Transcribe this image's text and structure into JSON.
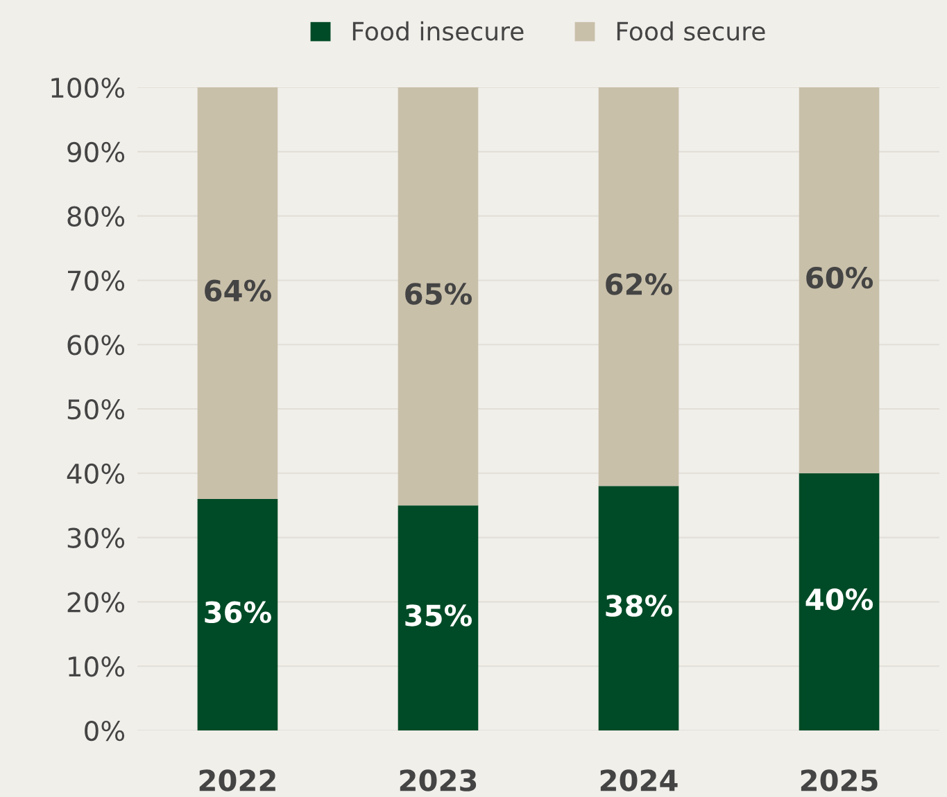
{
  "chart_data": {
    "type": "bar",
    "stacked": true,
    "categories": [
      "2022",
      "2023",
      "2024",
      "2025"
    ],
    "series": [
      {
        "name": "Food insecure",
        "color": "#004b27",
        "values": [
          36,
          35,
          38,
          40
        ],
        "value_labels": [
          "36%",
          "35%",
          "38%",
          "40%"
        ]
      },
      {
        "name": "Food secure",
        "color": "#c9c0aa",
        "values": [
          64,
          65,
          62,
          60
        ],
        "value_labels": [
          "64%",
          "65%",
          "62%",
          "60%"
        ]
      }
    ],
    "ylim": [
      0,
      100
    ],
    "yticks": [
      {
        "value": 0,
        "label": "0%"
      },
      {
        "value": 10,
        "label": "10%"
      },
      {
        "value": 20,
        "label": "20%"
      },
      {
        "value": 30,
        "label": "30%"
      },
      {
        "value": 40,
        "label": "40%"
      },
      {
        "value": 50,
        "label": "50%"
      },
      {
        "value": 60,
        "label": "60%"
      },
      {
        "value": 70,
        "label": "70%"
      },
      {
        "value": 80,
        "label": "80%"
      },
      {
        "value": 90,
        "label": "90%"
      },
      {
        "value": 100,
        "label": "100%"
      }
    ],
    "grid": "y",
    "legend": "top"
  }
}
